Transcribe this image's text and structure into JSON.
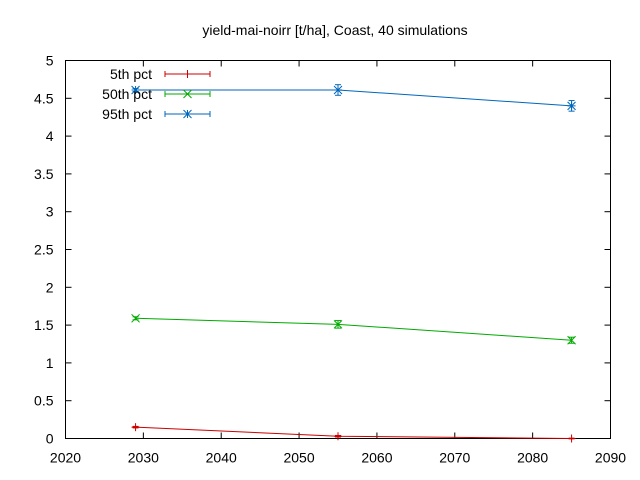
{
  "chart_data": {
    "type": "line",
    "title": "yield-mai-noirr [t/ha], Coast, 40 simulations",
    "xlabel": "",
    "ylabel": "",
    "xlim": [
      2020,
      2090
    ],
    "ylim": [
      0,
      5
    ],
    "xticks": [
      "2020",
      "2030",
      "2040",
      "2050",
      "2060",
      "2070",
      "2080",
      "2090"
    ],
    "yticks": [
      "0",
      "0.5",
      "1",
      "1.5",
      "2",
      "2.5",
      "3",
      "3.5",
      "4",
      "4.5",
      "5"
    ],
    "grid": false,
    "legend_position": "top-left",
    "x": [
      2029,
      2055,
      2085
    ],
    "series": [
      {
        "name": "5th pct",
        "color": "#cc0000",
        "marker": "plus",
        "values": [
          0.15,
          0.03,
          0.0
        ],
        "errors": [
          0.01,
          0.01,
          0.005
        ]
      },
      {
        "name": "50th pct",
        "color": "#00aa00",
        "marker": "x",
        "values": [
          1.59,
          1.51,
          1.3
        ],
        "errors": [
          0.02,
          0.05,
          0.04
        ]
      },
      {
        "name": "95th pct",
        "color": "#0066bb",
        "marker": "star",
        "values": [
          4.61,
          4.61,
          4.4
        ],
        "errors": [
          0.02,
          0.07,
          0.07
        ]
      }
    ]
  }
}
